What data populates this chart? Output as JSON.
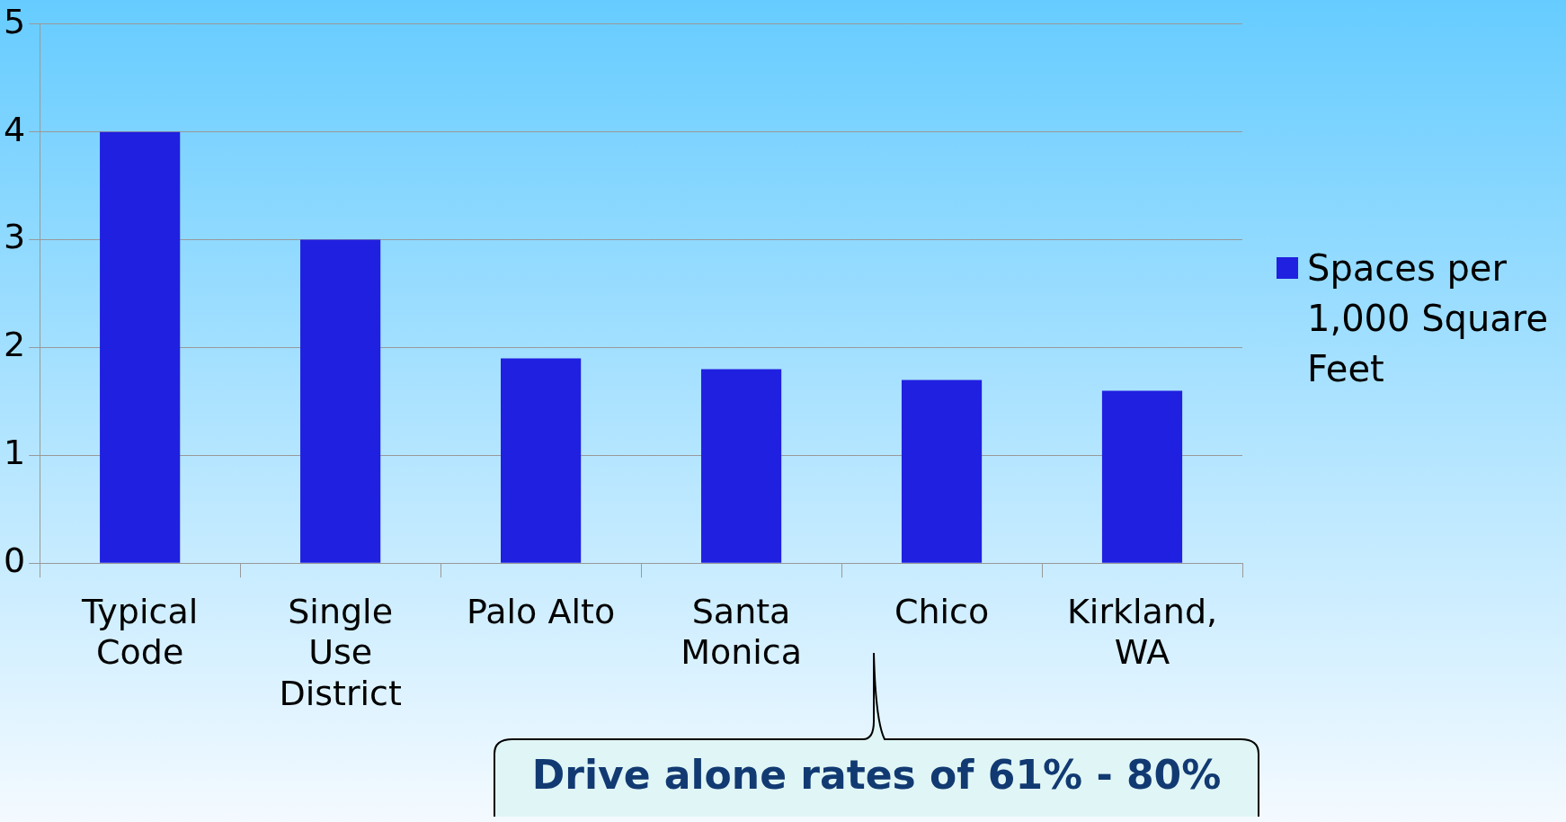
{
  "chart_data": {
    "type": "bar",
    "categories": [
      "Typical Code",
      "Single Use District",
      "Palo Alto",
      "Santa Monica",
      "Chico",
      "Kirkland, WA"
    ],
    "series": [
      {
        "name": "Spaces per 1,000 Square Feet",
        "color": "#2020e0",
        "values": [
          4,
          3,
          1.9,
          1.8,
          1.7,
          1.6
        ]
      }
    ],
    "ylim": [
      0,
      5
    ],
    "yticks": [
      0,
      1,
      2,
      3,
      4,
      5
    ],
    "grid": "y",
    "legend": "right",
    "annotations": [
      "Drive alone rates of 61% - 80%"
    ]
  }
}
